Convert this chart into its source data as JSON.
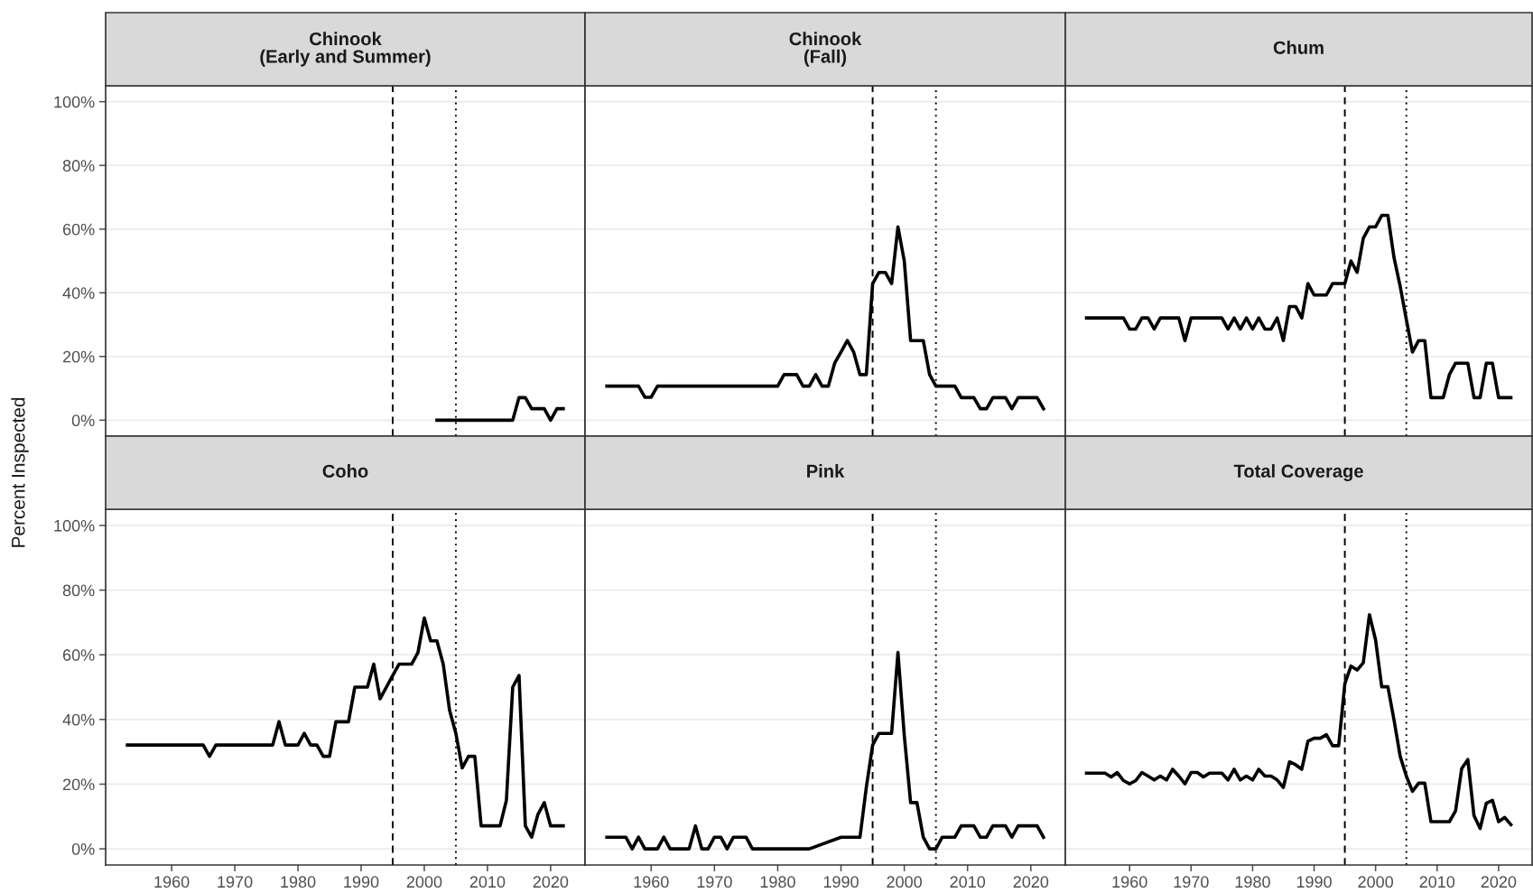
{
  "chart_data": [
    {
      "type": "line",
      "title": "Chinook\n(Early and Summer)",
      "ylabel": "Percent Inspected",
      "xlim": [
        1949.55,
        2025.45
      ],
      "ylim": [
        -5,
        105
      ],
      "yticks": [
        {
          "value": 0,
          "label": "0%"
        },
        {
          "value": 20,
          "label": "20%"
        },
        {
          "value": 40,
          "label": "40%"
        },
        {
          "value": 60,
          "label": "60%"
        },
        {
          "value": 80,
          "label": "80%"
        },
        {
          "value": 100,
          "label": "100%"
        }
      ],
      "grid": "y",
      "tick_labels": "y",
      "line_style": "solid",
      "ref_lines": [
        {
          "axis": "x",
          "value": 1995,
          "line_style": "dashed",
          "color": "#000000"
        },
        {
          "axis": "x",
          "value": 2005,
          "line_style": "dotted",
          "color": "#000000"
        }
      ],
      "series": [
        {
          "color": "#000000",
          "x": [
            2002,
            2003,
            2004,
            2005,
            2006,
            2007,
            2008,
            2009,
            2010,
            2011,
            2012,
            2013,
            2014,
            2015,
            2016,
            2017,
            2018,
            2019,
            2020,
            2021,
            2022
          ],
          "values": [
            0,
            0,
            0,
            0,
            0,
            0,
            0,
            0,
            0,
            0,
            0,
            0,
            0,
            7.1,
            7.1,
            3.6,
            3.6,
            3.6,
            0,
            3.6,
            3.6
          ]
        }
      ]
    },
    {
      "type": "line",
      "title": "Chinook\n(Fall)",
      "xlim": [
        1949.55,
        2025.45
      ],
      "ylim": [
        -5,
        105
      ],
      "yticks": [
        {
          "value": 0,
          "label": null
        },
        {
          "value": 20,
          "label": null
        },
        {
          "value": 40,
          "label": null
        },
        {
          "value": 60,
          "label": null
        },
        {
          "value": 80,
          "label": null
        },
        {
          "value": 100,
          "label": null
        }
      ],
      "grid": "y",
      "tick_labels": false,
      "line_style": "solid",
      "ref_lines": [
        {
          "axis": "x",
          "value": 1995,
          "line_style": "dashed",
          "color": "#000000"
        },
        {
          "axis": "x",
          "value": 2005,
          "line_style": "dotted",
          "color": "#000000"
        }
      ],
      "series": [
        {
          "color": "#000000",
          "x": [
            1953,
            1954,
            1955,
            1956,
            1957,
            1958,
            1959,
            1960,
            1961,
            1962,
            1963,
            1964,
            1965,
            1966,
            1967,
            1968,
            1969,
            1970,
            1971,
            1972,
            1973,
            1974,
            1975,
            1976,
            1977,
            1978,
            1979,
            1980,
            1981,
            1982,
            1983,
            1984,
            1985,
            1986,
            1987,
            1988,
            1989,
            1990,
            1991,
            1992,
            1993,
            1994,
            1995,
            1996,
            1997,
            1998,
            1999,
            2000,
            2001,
            2002,
            2003,
            2004,
            2005,
            2006,
            2007,
            2008,
            2009,
            2010,
            2011,
            2012,
            2013,
            2014,
            2015,
            2016,
            2017,
            2018,
            2019,
            2020,
            2021,
            2022
          ],
          "values": [
            10.7,
            10.7,
            10.7,
            10.7,
            10.7,
            10.7,
            7.2,
            7.2,
            10.7,
            10.7,
            10.7,
            10.7,
            10.7,
            10.7,
            10.7,
            10.7,
            10.7,
            10.7,
            10.7,
            10.7,
            10.7,
            10.7,
            10.7,
            10.7,
            10.7,
            10.7,
            10.7,
            10.7,
            14.3,
            14.3,
            14.3,
            10.7,
            10.7,
            14.3,
            10.7,
            10.7,
            17.9,
            21.4,
            25,
            21.4,
            14.3,
            14.3,
            42.9,
            46.4,
            46.4,
            42.9,
            60.7,
            50,
            25,
            25,
            25,
            14.3,
            10.7,
            10.7,
            10.7,
            10.7,
            7.1,
            7.1,
            7.1,
            3.6,
            3.6,
            7.1,
            7.1,
            7.1,
            3.6,
            7.1,
            7.1,
            7.1,
            7.1,
            3.6
          ]
        }
      ]
    },
    {
      "type": "line",
      "title": "Chum",
      "xlim": [
        1949.55,
        2025.45
      ],
      "ylim": [
        -5,
        105
      ],
      "yticks": [
        {
          "value": 0,
          "label": null
        },
        {
          "value": 20,
          "label": null
        },
        {
          "value": 40,
          "label": null
        },
        {
          "value": 60,
          "label": null
        },
        {
          "value": 80,
          "label": null
        },
        {
          "value": 100,
          "label": null
        }
      ],
      "grid": "y",
      "tick_labels": false,
      "line_style": "solid",
      "ref_lines": [
        {
          "axis": "x",
          "value": 1995,
          "line_style": "dashed",
          "color": "#000000"
        },
        {
          "axis": "x",
          "value": 2005,
          "line_style": "dotted",
          "color": "#000000"
        }
      ],
      "series": [
        {
          "color": "#000000",
          "x": [
            1953,
            1954,
            1955,
            1956,
            1957,
            1958,
            1959,
            1960,
            1961,
            1962,
            1963,
            1964,
            1965,
            1966,
            1967,
            1968,
            1969,
            1970,
            1971,
            1972,
            1973,
            1974,
            1975,
            1976,
            1977,
            1978,
            1979,
            1980,
            1981,
            1982,
            1983,
            1984,
            1985,
            1986,
            1987,
            1988,
            1989,
            1990,
            1991,
            1992,
            1993,
            1994,
            1995,
            1996,
            1997,
            1998,
            1999,
            2000,
            2001,
            2002,
            2003,
            2004,
            2005,
            2006,
            2007,
            2008,
            2009,
            2010,
            2011,
            2012,
            2013,
            2014,
            2015,
            2016,
            2017,
            2018,
            2019,
            2020,
            2021,
            2022
          ],
          "values": [
            32.1,
            32.1,
            32.1,
            32.1,
            32.1,
            32.1,
            32.1,
            28.6,
            28.6,
            32.1,
            32.1,
            28.6,
            32.1,
            32.1,
            32.1,
            32.1,
            25,
            32.1,
            32.1,
            32.1,
            32.1,
            32.1,
            32.1,
            28.6,
            32.1,
            28.6,
            32.1,
            28.6,
            32.1,
            28.6,
            28.6,
            32.1,
            25,
            35.7,
            35.7,
            32.1,
            42.9,
            39.3,
            39.3,
            39.3,
            42.9,
            42.9,
            42.9,
            50,
            46.4,
            57.1,
            60.7,
            60.7,
            64.3,
            64.3,
            51,
            42,
            31.6,
            21.4,
            25,
            25,
            7.1,
            7.1,
            7.1,
            14.3,
            17.9,
            17.9,
            17.9,
            7.1,
            7.1,
            17.9,
            17.9,
            7.1,
            7.1,
            7.1
          ]
        }
      ]
    },
    {
      "type": "line",
      "title": "Coho",
      "xlim": [
        1949.55,
        2025.45
      ],
      "ylim": [
        -5,
        105
      ],
      "xticks": [
        1960,
        1970,
        1980,
        1990,
        2000,
        2010,
        2020
      ],
      "yticks": [
        {
          "value": 0,
          "label": "0%"
        },
        {
          "value": 20,
          "label": "20%"
        },
        {
          "value": 40,
          "label": "40%"
        },
        {
          "value": 60,
          "label": "60%"
        },
        {
          "value": 80,
          "label": "80%"
        },
        {
          "value": 100,
          "label": "100%"
        }
      ],
      "grid": "y",
      "line_style": "solid",
      "ref_lines": [
        {
          "axis": "x",
          "value": 1995,
          "line_style": "dashed",
          "color": "#000000"
        },
        {
          "axis": "x",
          "value": 2005,
          "line_style": "dotted",
          "color": "#000000"
        }
      ],
      "series": [
        {
          "color": "#000000",
          "x": [
            1953,
            1954,
            1955,
            1956,
            1957,
            1958,
            1959,
            1960,
            1961,
            1962,
            1963,
            1964,
            1965,
            1966,
            1967,
            1968,
            1969,
            1970,
            1971,
            1972,
            1973,
            1974,
            1975,
            1976,
            1977,
            1978,
            1979,
            1980,
            1981,
            1982,
            1983,
            1984,
            1985,
            1986,
            1987,
            1988,
            1989,
            1990,
            1991,
            1992,
            1993,
            1994,
            1995,
            1996,
            1997,
            1998,
            1999,
            2000,
            2001,
            2002,
            2003,
            2004,
            2005,
            2006,
            2007,
            2008,
            2009,
            2010,
            2011,
            2012,
            2013,
            2014,
            2015,
            2016,
            2017,
            2018,
            2019,
            2020,
            2021,
            2022
          ],
          "values": [
            32.1,
            32.1,
            32.1,
            32.1,
            32.1,
            32.1,
            32.1,
            32.1,
            32.1,
            32.1,
            32.1,
            32.1,
            32.1,
            28.6,
            32.1,
            32.1,
            32.1,
            32.1,
            32.1,
            32.1,
            32.1,
            32.1,
            32.1,
            32.1,
            39.3,
            32.1,
            32.1,
            32.1,
            35.7,
            32.1,
            32.1,
            28.6,
            28.6,
            39.3,
            39.3,
            39.3,
            50,
            50,
            50,
            57.1,
            46.4,
            50,
            53.6,
            57.1,
            57.1,
            57.1,
            60.7,
            71.4,
            64.3,
            64.3,
            57.1,
            42.9,
            35.7,
            25,
            28.6,
            28.6,
            7.1,
            7.1,
            7.1,
            7.1,
            15,
            50,
            53.6,
            7.1,
            3.6,
            10.7,
            14.3,
            7.1,
            7.1,
            7.1
          ]
        }
      ]
    },
    {
      "type": "line",
      "title": "Pink",
      "xlim": [
        1949.55,
        2025.45
      ],
      "ylim": [
        -5,
        105
      ],
      "xticks": [
        1960,
        1970,
        1980,
        1990,
        2000,
        2010,
        2020
      ],
      "yticks": [
        {
          "value": 0,
          "label": null
        },
        {
          "value": 20,
          "label": null
        },
        {
          "value": 40,
          "label": null
        },
        {
          "value": 60,
          "label": null
        },
        {
          "value": 80,
          "label": null
        },
        {
          "value": 100,
          "label": null
        }
      ],
      "grid": "y",
      "tick_labels": "x",
      "line_style": "solid",
      "ref_lines": [
        {
          "axis": "x",
          "value": 1995,
          "line_style": "dashed",
          "color": "#000000"
        },
        {
          "axis": "x",
          "value": 2005,
          "line_style": "dotted",
          "color": "#000000"
        }
      ],
      "series": [
        {
          "color": "#000000",
          "x": [
            1953,
            1954,
            1955,
            1956,
            1957,
            1958,
            1959,
            1960,
            1961,
            1962,
            1963,
            1964,
            1965,
            1966,
            1967,
            1968,
            1969,
            1970,
            1971,
            1972,
            1973,
            1974,
            1975,
            1976,
            1977,
            1978,
            1979,
            1980,
            1981,
            1982,
            1983,
            1984,
            1985,
            1990,
            1991,
            1992,
            1993,
            1994,
            1995,
            1996,
            1997,
            1998,
            1999,
            2000,
            2001,
            2002,
            2003,
            2004,
            2005,
            2006,
            2007,
            2008,
            2009,
            2010,
            2011,
            2012,
            2013,
            2014,
            2015,
            2016,
            2017,
            2018,
            2019,
            2020,
            2021,
            2022
          ],
          "values": [
            3.6,
            3.6,
            3.6,
            3.6,
            0,
            3.6,
            0,
            0,
            0,
            3.6,
            0,
            0,
            0,
            0,
            7.1,
            0,
            0,
            3.6,
            3.6,
            0,
            3.6,
            3.6,
            3.6,
            0,
            0,
            0,
            0,
            0,
            0,
            0,
            0,
            0,
            0,
            3.6,
            3.6,
            3.6,
            3.6,
            19,
            32.1,
            35.7,
            35.7,
            35.7,
            60.7,
            35,
            14.3,
            14.3,
            3.6,
            0,
            0,
            3.6,
            3.6,
            3.6,
            7.1,
            7.1,
            7.1,
            3.6,
            3.6,
            7.1,
            7.1,
            7.1,
            3.6,
            7.1,
            7.1,
            7.1,
            7.1,
            3.6
          ]
        }
      ]
    },
    {
      "type": "line",
      "title": "Total Coverage",
      "xlim": [
        1949.55,
        2025.45
      ],
      "ylim": [
        -5,
        105
      ],
      "xticks": [
        1960,
        1970,
        1980,
        1990,
        2000,
        2010,
        2020
      ],
      "yticks": [
        {
          "value": 0,
          "label": null
        },
        {
          "value": 20,
          "label": null
        },
        {
          "value": 40,
          "label": null
        },
        {
          "value": 60,
          "label": null
        },
        {
          "value": 80,
          "label": null
        },
        {
          "value": 100,
          "label": null
        }
      ],
      "grid": "y",
      "tick_labels": "x",
      "line_style": "solid",
      "ref_lines": [
        {
          "axis": "x",
          "value": 1995,
          "line_style": "dashed",
          "color": "#000000"
        },
        {
          "axis": "x",
          "value": 2005,
          "line_style": "dotted",
          "color": "#000000"
        }
      ],
      "series": [
        {
          "color": "#000000",
          "x": [
            1953,
            1954,
            1955,
            1956,
            1957,
            1958,
            1959,
            1960,
            1961,
            1962,
            1963,
            1964,
            1965,
            1966,
            1967,
            1968,
            1969,
            1970,
            1971,
            1972,
            1973,
            1974,
            1975,
            1976,
            1977,
            1978,
            1979,
            1980,
            1981,
            1982,
            1983,
            1984,
            1985,
            1986,
            1987,
            1988,
            1989,
            1990,
            1991,
            1992,
            1993,
            1994,
            1995,
            1996,
            1997,
            1998,
            1999,
            2000,
            2001,
            2002,
            2003,
            2004,
            2005,
            2006,
            2007,
            2008,
            2009,
            2010,
            2011,
            2012,
            2013,
            2014,
            2015,
            2016,
            2017,
            2018,
            2019,
            2020,
            2021,
            2022
          ],
          "values": [
            23.4,
            23.4,
            23.4,
            23.4,
            22.2,
            23.6,
            21.1,
            20.1,
            21.1,
            23.6,
            22.5,
            21.3,
            22.5,
            21.3,
            24.6,
            22.5,
            20.1,
            23.6,
            23.6,
            22.2,
            23.4,
            23.4,
            23.4,
            21.3,
            24.6,
            21.3,
            22.5,
            21.3,
            24.6,
            22.5,
            22.5,
            21.3,
            19,
            26.9,
            26,
            24.6,
            33.3,
            34.2,
            34.2,
            35.3,
            31.9,
            31.9,
            51.1,
            56.5,
            55.3,
            57.5,
            72.4,
            64.6,
            50.1,
            50.1,
            39.8,
            28.6,
            22.5,
            17.8,
            20.3,
            20.3,
            8.4,
            8.4,
            8.4,
            8.4,
            11.7,
            24.8,
            27.6,
            10.3,
            6.3,
            14.1,
            15,
            8.4,
            9.7,
            7.5
          ]
        }
      ]
    }
  ]
}
